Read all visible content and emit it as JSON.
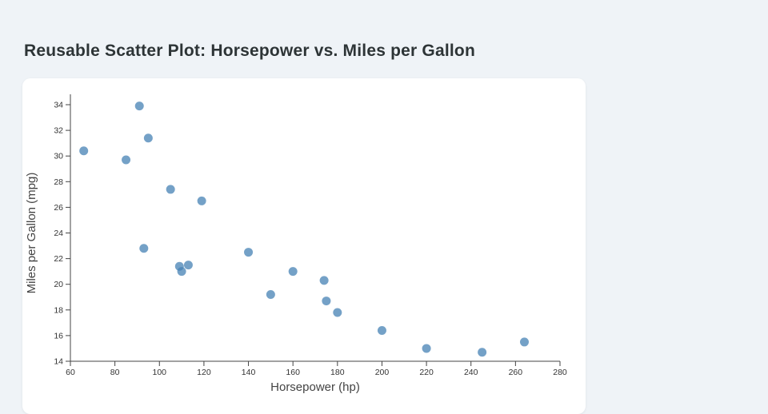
{
  "page": {
    "title": "Reusable Scatter Plot: Horsepower vs. Miles per Gallon"
  },
  "chart_data": {
    "type": "scatter",
    "title": "Reusable Scatter Plot: Horsepower vs. Miles per Gallon",
    "xlabel": "Horsepower (hp)",
    "ylabel": "Miles per Gallon (mpg)",
    "xlim": [
      60,
      280
    ],
    "ylim": [
      14,
      34
    ],
    "x_ticks": [
      60,
      80,
      100,
      120,
      140,
      160,
      180,
      200,
      220,
      240,
      260,
      280
    ],
    "y_ticks": [
      14,
      16,
      18,
      20,
      22,
      24,
      26,
      28,
      30,
      32,
      34
    ],
    "grid": false,
    "legend": false,
    "point_color": "#4682b4",
    "point_opacity": 0.75,
    "point_radius": 5.5,
    "points": [
      {
        "hp": 66,
        "mpg": 30.4
      },
      {
        "hp": 85,
        "mpg": 29.7
      },
      {
        "hp": 91,
        "mpg": 33.9
      },
      {
        "hp": 95,
        "mpg": 31.4
      },
      {
        "hp": 93,
        "mpg": 22.8
      },
      {
        "hp": 105,
        "mpg": 27.4
      },
      {
        "hp": 119,
        "mpg": 26.5
      },
      {
        "hp": 109,
        "mpg": 21.4
      },
      {
        "hp": 113,
        "mpg": 21.5
      },
      {
        "hp": 110,
        "mpg": 21.0
      },
      {
        "hp": 140,
        "mpg": 22.5
      },
      {
        "hp": 150,
        "mpg": 19.2
      },
      {
        "hp": 160,
        "mpg": 21.0
      },
      {
        "hp": 174,
        "mpg": 20.3
      },
      {
        "hp": 175,
        "mpg": 18.7
      },
      {
        "hp": 180,
        "mpg": 17.8
      },
      {
        "hp": 200,
        "mpg": 16.4
      },
      {
        "hp": 220,
        "mpg": 15.0
      },
      {
        "hp": 245,
        "mpg": 14.7
      },
      {
        "hp": 264,
        "mpg": 15.5
      }
    ]
  },
  "colors": {
    "background": "#eff3f7",
    "card": "#ffffff",
    "title": "#2d3436",
    "axis": "#444444",
    "tick_label": "#333333",
    "point": "#4682b4"
  }
}
